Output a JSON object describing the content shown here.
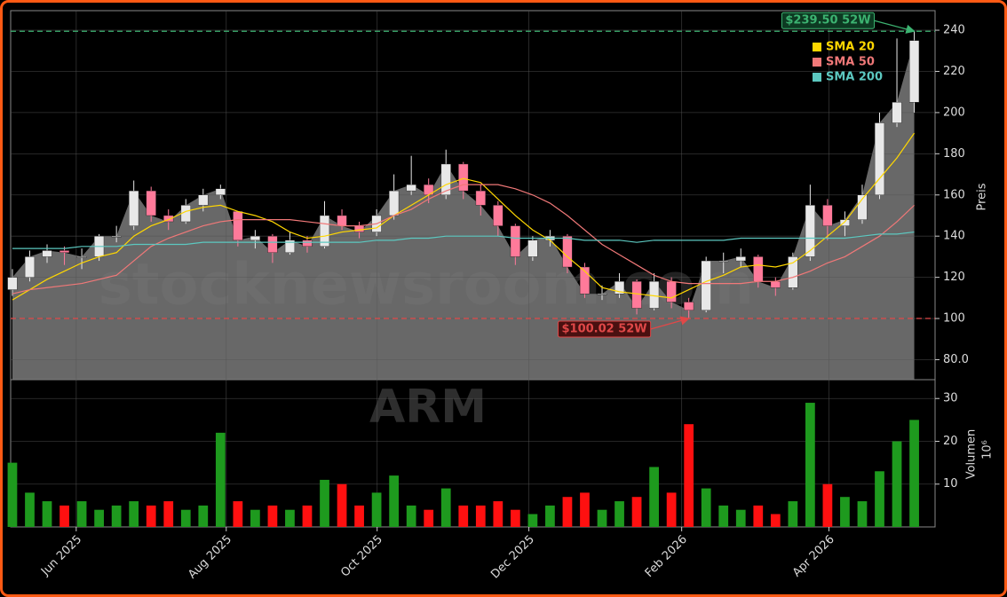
{
  "chart_data": [
    {
      "type": "candlestick",
      "watermark": "stocknewsroom.com",
      "ylabel": "Preis",
      "xlim": [
        -0.1,
        53.2
      ],
      "ylim": [
        70.3,
        249.5
      ],
      "yticks": [
        {
          "value": 80,
          "label": "80.0"
        },
        100,
        120,
        140,
        160,
        180,
        200,
        220,
        240
      ],
      "grid": true,
      "up_color": "#e8e8e8",
      "down_color": "#ff7a9a",
      "area_color": "#7a7a7a",
      "open": [
        114,
        120,
        130,
        133,
        130,
        130,
        140,
        145,
        162,
        150,
        147,
        155,
        160,
        152,
        138,
        140,
        132,
        138,
        135,
        150,
        145,
        142,
        150,
        162,
        165,
        160,
        175,
        162,
        155,
        145,
        130,
        138,
        140,
        125,
        112,
        112,
        118,
        105,
        118,
        108,
        104,
        128,
        128,
        130,
        118,
        115,
        130,
        155,
        145,
        148,
        160,
        195,
        205
      ],
      "high": [
        124,
        133,
        136,
        135,
        134,
        141,
        145,
        167,
        164,
        153,
        158,
        163,
        165,
        152,
        143,
        141,
        142,
        140,
        157,
        153,
        147,
        153,
        170,
        179,
        168,
        182,
        176,
        165,
        157,
        146,
        140,
        143,
        141,
        127,
        116,
        122,
        119,
        122,
        120,
        110,
        130,
        132,
        134,
        131,
        120,
        132,
        165,
        158,
        152,
        165,
        200,
        236,
        239.5
      ],
      "low": [
        111,
        118,
        127,
        126,
        124,
        128,
        137,
        143,
        147,
        143,
        146,
        152,
        158,
        135,
        134,
        127,
        131,
        132,
        134,
        143,
        139,
        140,
        148,
        160,
        156,
        158,
        158,
        150,
        140,
        126,
        128,
        135,
        122,
        110,
        109,
        110,
        102,
        104,
        105,
        100.02,
        103,
        122,
        125,
        115,
        111,
        114,
        128,
        138,
        140,
        146,
        158,
        193,
        200
      ],
      "close": [
        120,
        130,
        133,
        132,
        130,
        140,
        140,
        162,
        150,
        147,
        155,
        160,
        163,
        138,
        140,
        132,
        138,
        135,
        150,
        145,
        142,
        150,
        162,
        165,
        160,
        175,
        162,
        155,
        145,
        130,
        138,
        140,
        125,
        112,
        112,
        118,
        105,
        118,
        108,
        104,
        128,
        128,
        130,
        118,
        115,
        130,
        155,
        145,
        148,
        160,
        195,
        205,
        235
      ],
      "series": [
        {
          "name": "SMA 20",
          "color": "#ffd700",
          "values": [
            109,
            114,
            119,
            123,
            127,
            130,
            132,
            140,
            145,
            148,
            152,
            154,
            155,
            152,
            150,
            147,
            142,
            139,
            140,
            142,
            143,
            144,
            150,
            155,
            160,
            165,
            168,
            166,
            158,
            150,
            143,
            138,
            130,
            123,
            115,
            113,
            112,
            111,
            110,
            114,
            118,
            121,
            125,
            126,
            125,
            127,
            133,
            140,
            147,
            158,
            168,
            178,
            190
          ]
        },
        {
          "name": "SMA 50",
          "color": "#f07878",
          "values": [
            112,
            114,
            115,
            116,
            117,
            119,
            121,
            128,
            135,
            139,
            142,
            145,
            147,
            148,
            148,
            148,
            148,
            147,
            146,
            145,
            145,
            146,
            150,
            153,
            158,
            162,
            165,
            165,
            165,
            163,
            160,
            156,
            150,
            143,
            136,
            131,
            126,
            121,
            118,
            117,
            117,
            117,
            117,
            118,
            118,
            120,
            123,
            127,
            130,
            135,
            140,
            147,
            155
          ]
        },
        {
          "name": "SMA 200",
          "color": "#5cc8c0",
          "values": [
            134,
            134,
            134,
            134,
            135,
            135,
            135,
            136,
            136,
            136,
            136,
            137,
            137,
            137,
            137,
            137,
            137,
            137,
            137,
            137,
            137,
            138,
            138,
            139,
            139,
            140,
            140,
            140,
            140,
            139,
            139,
            139,
            139,
            138,
            138,
            138,
            137,
            138,
            138,
            138,
            138,
            138,
            139,
            139,
            139,
            139,
            139,
            139,
            139,
            140,
            141,
            141,
            142
          ]
        }
      ],
      "legend": "upper right",
      "annotations": [
        {
          "text": "$239.50 52W",
          "value": 239.5,
          "color": "#3cb371"
        },
        {
          "text": "$100.02 52W",
          "value": 100.02,
          "color": "#e04848"
        }
      ]
    },
    {
      "type": "bar",
      "watermark": "ARM",
      "ylabel": "Volumen",
      "ylabel_unit": "10⁶",
      "xlim": [
        -0.1,
        53.2
      ],
      "ylim": [
        0,
        34.4
      ],
      "yticks": [
        10,
        20,
        30
      ],
      "grid": true,
      "up_color": "#1e9a1e",
      "down_color": "#ff1010",
      "values": [
        15,
        8,
        6,
        5,
        6,
        4,
        5,
        6,
        5,
        6,
        4,
        5,
        22,
        6,
        4,
        5,
        4,
        5,
        11,
        10,
        5,
        8,
        12,
        5,
        4,
        9,
        5,
        5,
        6,
        4,
        3,
        5,
        7,
        8,
        4,
        6,
        7,
        14,
        8,
        24,
        9,
        5,
        4,
        5,
        3,
        6,
        29,
        10,
        7,
        6,
        13,
        20,
        25
      ],
      "xticks": [
        {
          "value": 3.68,
          "label": "Jun 2025"
        },
        {
          "value": 12.33,
          "label": "Aug 2025"
        },
        {
          "value": 21.03,
          "label": "Oct 2025"
        },
        {
          "value": 29.78,
          "label": "Dec 2025"
        },
        {
          "value": 38.59,
          "label": "Feb 2026"
        },
        {
          "value": 47.08,
          "label": "Apr 2026"
        }
      ]
    }
  ]
}
